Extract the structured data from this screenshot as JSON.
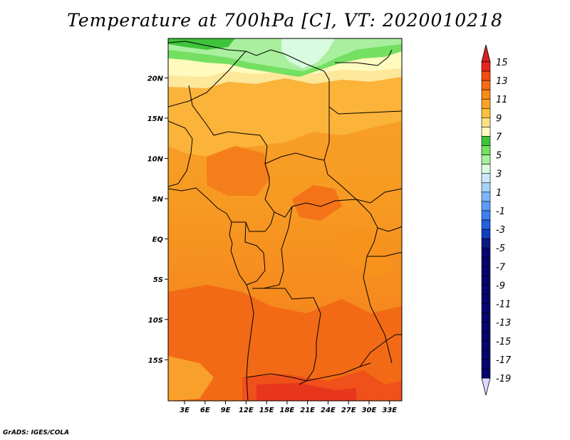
{
  "title": "Temperature at 700hPa [C], VT: 2020010218",
  "credit": "GrADS: IGES/COLA",
  "map": {
    "lat_ticks": [
      {
        "label": "20N",
        "lat": 20
      },
      {
        "label": "15N",
        "lat": 15
      },
      {
        "label": "10N",
        "lat": 10
      },
      {
        "label": "5N",
        "lat": 5
      },
      {
        "label": "EQ",
        "lat": 0
      },
      {
        "label": "5S",
        "lat": -5
      },
      {
        "label": "10S",
        "lat": -10
      },
      {
        "label": "15S",
        "lat": -15
      }
    ],
    "lon_ticks": [
      {
        "label": "3E",
        "lon": 3
      },
      {
        "label": "6E",
        "lon": 6
      },
      {
        "label": "9E",
        "lon": 9
      },
      {
        "label": "12E",
        "lon": 12
      },
      {
        "label": "15E",
        "lon": 15
      },
      {
        "label": "18E",
        "lon": 18
      },
      {
        "label": "21E",
        "lon": 21
      },
      {
        "label": "24E",
        "lon": 24
      },
      {
        "label": "27E",
        "lon": 27
      },
      {
        "label": "30E",
        "lon": 30
      },
      {
        "label": "33E",
        "lon": 33
      }
    ]
  },
  "colorbar": {
    "labels": [
      "15",
      "13",
      "11",
      "9",
      "7",
      "5",
      "3",
      "1",
      "-1",
      "-3",
      "-5",
      "-7",
      "-9",
      "-11",
      "-13",
      "-15",
      "-17",
      "-19"
    ],
    "colors": [
      "#e8261c",
      "#f24d10",
      "#f86c14",
      "#f98b16",
      "#faa524",
      "#fcc23a",
      "#fde085",
      "#fffbbf",
      "#3ec43a",
      "#74df60",
      "#a9ef9e",
      "#d9fbe0",
      "#cfe8ff",
      "#a7d2fd",
      "#7db7fb",
      "#5b9cf6",
      "#3b7ff0",
      "#2060e0",
      "#1040c0",
      "#0a1a80",
      "#06066e"
    ],
    "arrow_top_color": "#d62020",
    "arrow_bottom_color": "#dcd8ff"
  }
}
